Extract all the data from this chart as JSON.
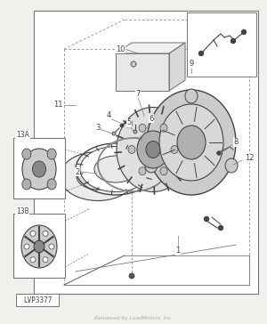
{
  "bg_color": "#f0f0ec",
  "diagram_bg": "#ffffff",
  "border_color": "#999999",
  "footer_text": "Rendered by LeadMotors, Inc.",
  "part_label": "LVP3377",
  "label_color": "#333333",
  "line_color": "#777777",
  "dark_color": "#444444",
  "gray1": "#cccccc",
  "gray2": "#b0b0b0",
  "gray3": "#888888",
  "gray4": "#d8d8d8"
}
